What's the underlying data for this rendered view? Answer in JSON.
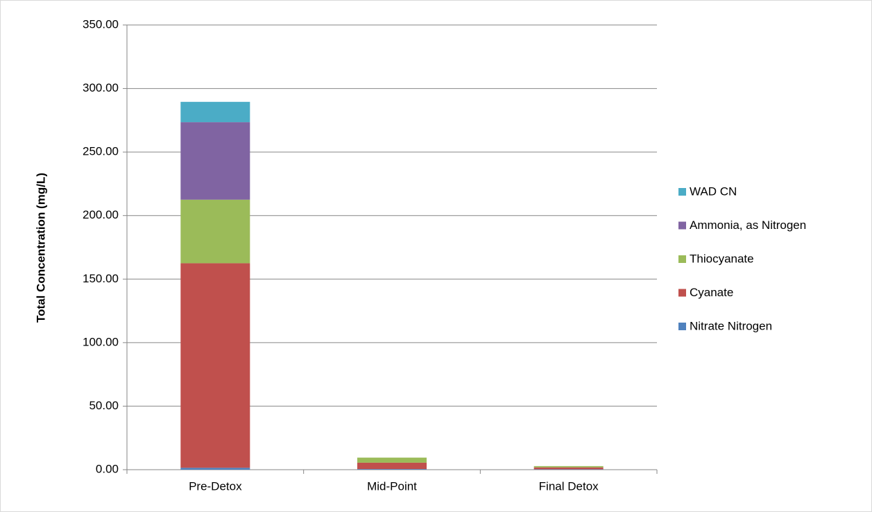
{
  "chart_data": {
    "type": "stacked_bar",
    "y_axis_label": "Total Concentration (mg/L)",
    "categories": [
      "Pre-Detox",
      "Mid-Point",
      "Final Detox"
    ],
    "series": [
      {
        "name": "Nitrate Nitrogen",
        "color": "#4f81bd",
        "values": [
          1.5,
          0.5,
          0.3
        ]
      },
      {
        "name": "Cyanate",
        "color": "#c0504d",
        "values": [
          161,
          5,
          1.5
        ]
      },
      {
        "name": "Thiocyanate",
        "color": "#9bbb59",
        "values": [
          50,
          4,
          1
        ]
      },
      {
        "name": "Ammonia, as Nitrogen",
        "color": "#8064a2",
        "values": [
          61,
          0,
          0
        ]
      },
      {
        "name": "WAD CN",
        "color": "#4bacc6",
        "values": [
          16,
          0,
          0
        ]
      }
    ],
    "ylim": [
      0,
      350
    ],
    "yticks": [
      {
        "value": 0,
        "label": "0.00"
      },
      {
        "value": 50,
        "label": "50.00"
      },
      {
        "value": 100,
        "label": "100.00"
      },
      {
        "value": 150,
        "label": "150.00"
      },
      {
        "value": 200,
        "label": "200.00"
      },
      {
        "value": 250,
        "label": "250.00"
      },
      {
        "value": 300,
        "label": "300.00"
      },
      {
        "value": 350,
        "label": "350.00"
      }
    ],
    "grid": true,
    "legend": "right"
  }
}
